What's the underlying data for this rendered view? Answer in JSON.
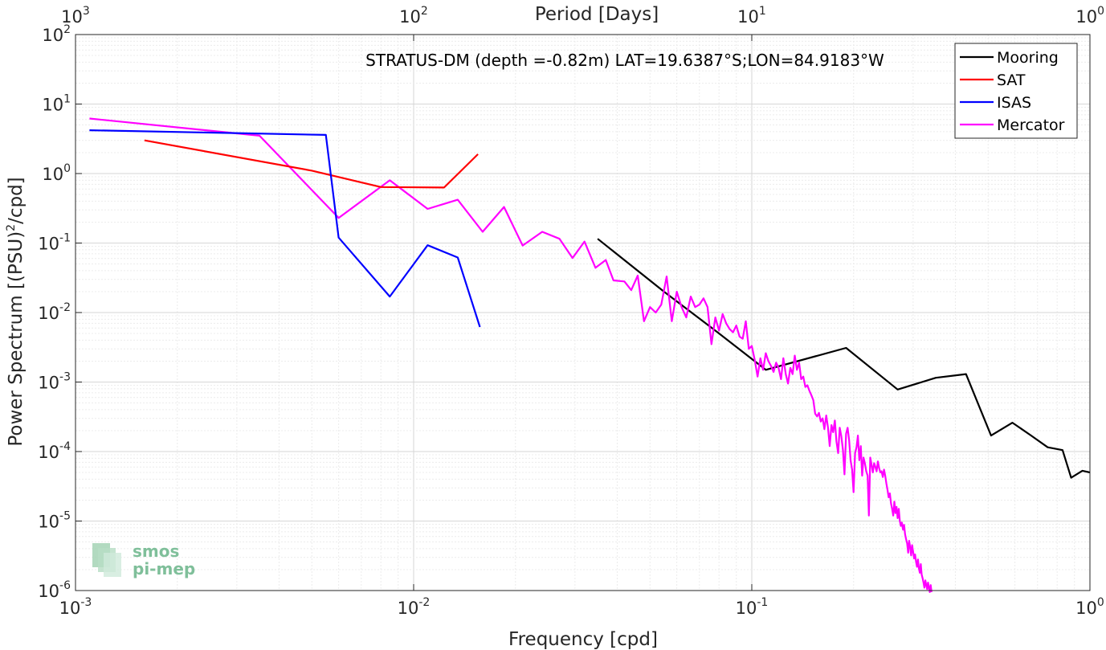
{
  "chart_data": {
    "type": "line",
    "title": "STRATUS-DM (depth =-0.82m) LAT=19.6387°S;LON=84.9183°W",
    "xlabel": "Frequency [cpd]",
    "ylabel_main": "Power Spectrum [(PSU)",
    "ylabel_sup": "2",
    "ylabel_tail": "/cpd]",
    "top_xlabel": "Period [Days]",
    "x_scale": "log",
    "y_scale": "log",
    "xlim": [
      0.001,
      1
    ],
    "ylim": [
      1e-06,
      100
    ],
    "grid": true,
    "legend_position": "top-right",
    "x_ticks": [
      {
        "value": 0.001,
        "base": "10",
        "exp": "-3"
      },
      {
        "value": 0.01,
        "base": "10",
        "exp": "-2"
      },
      {
        "value": 0.1,
        "base": "10",
        "exp": "-1"
      },
      {
        "value": 1,
        "base": "10",
        "exp": "0"
      }
    ],
    "top_ticks": [
      {
        "value": 0.001,
        "base": "10",
        "exp": "3"
      },
      {
        "value": 0.01,
        "base": "10",
        "exp": "2"
      },
      {
        "value": 0.1,
        "base": "10",
        "exp": "1"
      },
      {
        "value": 1,
        "base": "10",
        "exp": "0"
      }
    ],
    "y_ticks": [
      {
        "value": 1e-06,
        "base": "10",
        "exp": "-6"
      },
      {
        "value": 1e-05,
        "base": "10",
        "exp": "-5"
      },
      {
        "value": 0.0001,
        "base": "10",
        "exp": "-4"
      },
      {
        "value": 0.001,
        "base": "10",
        "exp": "-3"
      },
      {
        "value": 0.01,
        "base": "10",
        "exp": "-2"
      },
      {
        "value": 0.1,
        "base": "10",
        "exp": "-1"
      },
      {
        "value": 1,
        "base": "10",
        "exp": "0"
      },
      {
        "value": 10,
        "base": "10",
        "exp": "1"
      },
      {
        "value": 100,
        "base": "10",
        "exp": "2"
      }
    ],
    "series": [
      {
        "name": "Mooring",
        "color": "#000000",
        "points": [
          [
            0.035,
            0.115
          ],
          [
            0.055,
            0.02
          ],
          [
            0.08,
            0.005
          ],
          [
            0.11,
            0.0015
          ],
          [
            0.19,
            0.0031
          ],
          [
            0.27,
            0.00078
          ],
          [
            0.35,
            0.00115
          ],
          [
            0.43,
            0.0013
          ],
          [
            0.51,
            0.00017
          ],
          [
            0.59,
            0.00026
          ],
          [
            0.67,
            0.00017
          ],
          [
            0.75,
            0.000115
          ],
          [
            0.83,
            0.000105
          ],
          [
            0.88,
            4.2e-05
          ],
          [
            0.95,
            5.3e-05
          ],
          [
            1.0,
            5e-05
          ]
        ]
      },
      {
        "name": "SAT",
        "color": "#ff0000",
        "points": [
          [
            0.0016,
            3.0
          ],
          [
            0.005,
            1.1
          ],
          [
            0.008,
            0.64
          ],
          [
            0.0123,
            0.63
          ],
          [
            0.0155,
            1.9
          ]
        ]
      },
      {
        "name": "ISAS",
        "color": "#0000ff",
        "points": [
          [
            0.0011,
            4.2
          ],
          [
            0.0055,
            3.6
          ],
          [
            0.006,
            0.12
          ],
          [
            0.0085,
            0.017
          ],
          [
            0.011,
            0.093
          ],
          [
            0.0135,
            0.062
          ],
          [
            0.0157,
            0.0062
          ]
        ]
      },
      {
        "name": "Mercator",
        "color": "#ff00ff",
        "points": [
          [
            0.0011,
            6.2
          ],
          [
            0.0035,
            3.5
          ],
          [
            0.006,
            0.23
          ],
          [
            0.0085,
            0.8
          ],
          [
            0.011,
            0.31
          ],
          [
            0.0135,
            0.42
          ],
          [
            0.016,
            0.145
          ],
          [
            0.0185,
            0.33
          ],
          [
            0.021,
            0.092
          ],
          [
            0.024,
            0.145
          ],
          [
            0.027,
            0.115
          ],
          [
            0.0295,
            0.061
          ],
          [
            0.032,
            0.105
          ],
          [
            0.0345,
            0.044
          ],
          [
            0.037,
            0.057
          ],
          [
            0.039,
            0.029
          ],
          [
            0.042,
            0.028
          ],
          [
            0.044,
            0.021
          ],
          [
            0.046,
            0.034
          ],
          [
            0.048,
            0.0075
          ],
          [
            0.05,
            0.012
          ],
          [
            0.052,
            0.01
          ],
          [
            0.054,
            0.013
          ],
          [
            0.056,
            0.033
          ],
          [
            0.058,
            0.0075
          ],
          [
            0.06,
            0.02
          ],
          [
            0.062,
            0.012
          ],
          [
            0.064,
            0.0085
          ],
          [
            0.066,
            0.017
          ],
          [
            0.068,
            0.012
          ],
          [
            0.07,
            0.013
          ],
          [
            0.072,
            0.016
          ],
          [
            0.074,
            0.012
          ],
          [
            0.076,
            0.0035
          ],
          [
            0.078,
            0.0085
          ],
          [
            0.08,
            0.0055
          ],
          [
            0.082,
            0.0095
          ],
          [
            0.084,
            0.007
          ],
          [
            0.086,
            0.0058
          ],
          [
            0.088,
            0.0052
          ],
          [
            0.09,
            0.0065
          ],
          [
            0.092,
            0.0045
          ],
          [
            0.094,
            0.0042
          ],
          [
            0.096,
            0.0075
          ],
          [
            0.098,
            0.003
          ],
          [
            0.1,
            0.0033
          ],
          [
            0.102,
            0.0021
          ],
          [
            0.104,
            0.0012
          ],
          [
            0.106,
            0.0022
          ],
          [
            0.108,
            0.0015
          ],
          [
            0.11,
            0.0026
          ],
          [
            0.112,
            0.002
          ],
          [
            0.114,
            0.0017
          ],
          [
            0.116,
            0.0014
          ],
          [
            0.118,
            0.0019
          ],
          [
            0.12,
            0.0016
          ],
          [
            0.122,
            0.0011
          ],
          [
            0.124,
            0.0022
          ],
          [
            0.126,
            0.0013
          ],
          [
            0.128,
            0.00095
          ],
          [
            0.13,
            0.0016
          ],
          [
            0.132,
            0.0013
          ],
          [
            0.134,
            0.0024
          ],
          [
            0.136,
            0.0015
          ],
          [
            0.138,
            0.0019
          ],
          [
            0.14,
            0.0011
          ],
          [
            0.142,
            0.0012
          ],
          [
            0.144,
            0.00085
          ],
          [
            0.146,
            0.0009
          ],
          [
            0.148,
            0.00075
          ],
          [
            0.15,
            0.00065
          ],
          [
            0.152,
            0.00055
          ],
          [
            0.154,
            0.00035
          ],
          [
            0.156,
            0.00032
          ],
          [
            0.158,
            0.00036
          ],
          [
            0.16,
            0.00027
          ],
          [
            0.162,
            0.0003
          ],
          [
            0.164,
            0.00021
          ],
          [
            0.166,
            0.00033
          ],
          [
            0.168,
            0.00022
          ],
          [
            0.17,
            0.00012
          ],
          [
            0.172,
            0.00024
          ],
          [
            0.174,
            0.00019
          ],
          [
            0.176,
            0.00028
          ],
          [
            0.178,
            0.00014
          ],
          [
            0.18,
            9.5e-05
          ],
          [
            0.182,
            0.00022
          ],
          [
            0.184,
            0.000165
          ],
          [
            0.186,
            0.000105
          ],
          [
            0.188,
            4.7e-05
          ],
          [
            0.19,
            0.00018
          ],
          [
            0.192,
            0.00022
          ],
          [
            0.194,
            0.000145
          ],
          [
            0.196,
            7.5e-05
          ],
          [
            0.198,
            5.5e-05
          ],
          [
            0.2,
            2.6e-05
          ],
          [
            0.202,
            9.5e-05
          ],
          [
            0.204,
            0.000115
          ],
          [
            0.206,
            0.00017
          ],
          [
            0.208,
            7.5e-05
          ],
          [
            0.21,
            0.00012
          ],
          [
            0.212,
            4.5e-05
          ],
          [
            0.214,
            8.2e-05
          ],
          [
            0.216,
            6.8e-05
          ],
          [
            0.218,
            5.2e-05
          ],
          [
            0.22,
            4.5e-05
          ],
          [
            0.222,
            1.2e-05
          ],
          [
            0.224,
            8.2e-05
          ],
          [
            0.226,
            6.5e-05
          ],
          [
            0.228,
            5e-05
          ],
          [
            0.23,
            6.8e-05
          ],
          [
            0.232,
            6e-05
          ],
          [
            0.234,
            5.2e-05
          ],
          [
            0.236,
            7.2e-05
          ],
          [
            0.238,
            5.8e-05
          ],
          [
            0.24,
            5e-05
          ],
          [
            0.242,
            5.2e-05
          ],
          [
            0.244,
            4.3e-05
          ],
          [
            0.246,
            5.5e-05
          ],
          [
            0.248,
            4.5e-05
          ],
          [
            0.25,
            3.5e-05
          ],
          [
            0.252,
            2.8e-05
          ],
          [
            0.254,
            2.2e-05
          ],
          [
            0.256,
            2.5e-05
          ],
          [
            0.258,
            1.8e-05
          ],
          [
            0.26,
            1.5e-05
          ],
          [
            0.262,
            1.2e-05
          ],
          [
            0.264,
            1.9e-05
          ],
          [
            0.266,
            1.3e-05
          ],
          [
            0.268,
            1.6e-05
          ],
          [
            0.27,
            1.1e-05
          ],
          [
            0.272,
            1.5e-05
          ],
          [
            0.274,
            1e-05
          ],
          [
            0.276,
            8.5e-06
          ],
          [
            0.278,
            9.5e-06
          ],
          [
            0.28,
            7.5e-06
          ],
          [
            0.282,
            8.8e-06
          ],
          [
            0.284,
            6.5e-06
          ],
          [
            0.286,
            5.5e-06
          ],
          [
            0.288,
            4.8e-06
          ],
          [
            0.29,
            3.5e-06
          ],
          [
            0.292,
            5.2e-06
          ],
          [
            0.294,
            4.2e-06
          ],
          [
            0.296,
            3.2e-06
          ],
          [
            0.298,
            4.5e-06
          ],
          [
            0.3,
            3.6e-06
          ],
          [
            0.302,
            2.9e-06
          ],
          [
            0.304,
            3.3e-06
          ],
          [
            0.306,
            2.6e-06
          ],
          [
            0.308,
            2.2e-06
          ],
          [
            0.31,
            2.8e-06
          ],
          [
            0.312,
            2.1e-06
          ],
          [
            0.314,
            1.8e-06
          ],
          [
            0.316,
            2.4e-06
          ],
          [
            0.318,
            1.7e-06
          ],
          [
            0.32,
            1.5e-06
          ],
          [
            0.322,
            1.3e-06
          ],
          [
            0.324,
            1.1e-06
          ],
          [
            0.326,
            1.4e-06
          ],
          [
            0.328,
            1.2e-06
          ],
          [
            0.33,
            1.05e-06
          ],
          [
            0.332,
            1.3e-06
          ],
          [
            0.334,
            1.1e-06
          ],
          [
            0.336,
            9.5e-07
          ],
          [
            0.338,
            1.2e-06
          ],
          [
            0.34,
            9.5e-07
          ]
        ]
      }
    ]
  },
  "logo": {
    "line1": "smos",
    "line2": "pi-mep"
  }
}
